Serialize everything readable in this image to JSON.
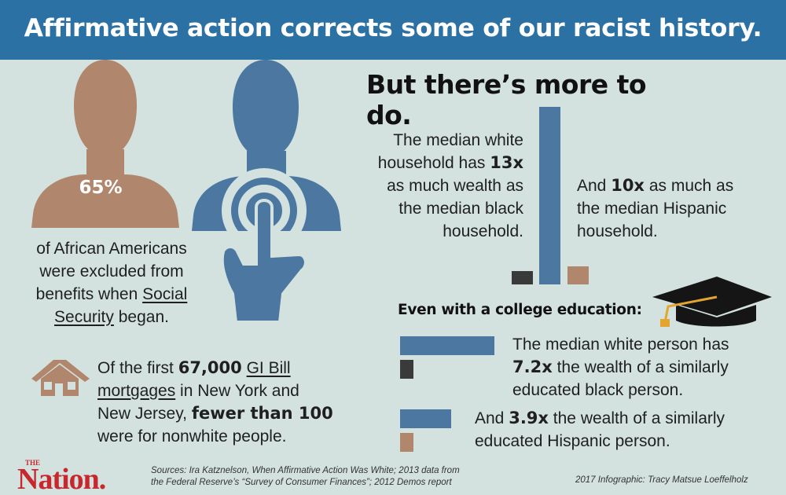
{
  "header": {
    "title": "Affirmative action corrects some of our racist history."
  },
  "colors": {
    "banner": "#2b71a3",
    "background": "#d3e2df",
    "white_bar": "#4b77a1",
    "black_bar": "#3a3a3a",
    "hispanic_bar": "#b0876d",
    "figure_tan": "#b0876d",
    "figure_blue": "#4b77a1",
    "logo_red": "#c8272d"
  },
  "left_panel": {
    "percent_label": "65%",
    "ss_line1": "of African Americans",
    "ss_line2": "were excluded from",
    "ss_line3_prefix": "benefits when ",
    "ss_line3_link": "Social",
    "ss_line4_link": "Security",
    "ss_line4_suffix": " began.",
    "icons": [
      "person-silhouette-icon",
      "touch-hand-icon",
      "house-icon"
    ]
  },
  "gi_bill": {
    "prefix": "Of the first ",
    "count": "67,000",
    "space": " ",
    "link1": "GI Bill",
    "link2": "mortgages",
    "mid": " in New York and",
    "line3": "New Jersey, ",
    "fewer": "fewer than 100",
    "line4": "were for nonwhite people."
  },
  "right_panel": {
    "title": "But there’s more to do.",
    "white_line1": "The median white",
    "white_line2_prefix": "household has ",
    "white_multiple": "13x",
    "white_line3": "as much wealth as",
    "white_line4": "the median black",
    "white_line5": "household.",
    "hisp_prefix": "And ",
    "hisp_multiple": "10x",
    "hisp_line1_suffix": " as much as",
    "hisp_line2": "the median Hispanic",
    "hisp_line3": "household."
  },
  "education": {
    "heading": "Even with a college education:",
    "icon": "graduation-cap-icon",
    "white_line1": "The median white person has",
    "white_multiple": "7.2x",
    "white_line2_suffix": " the wealth of a similarly",
    "white_line3": "educated black person.",
    "hisp_prefix": "And ",
    "hisp_multiple": "3.9x",
    "hisp_line1_suffix": " the wealth of a similarly",
    "hisp_line2": "educated Hispanic person."
  },
  "chart_data": [
    {
      "type": "bar",
      "categories": [
        "black",
        "white",
        "Hispanic"
      ],
      "values": [
        1,
        13,
        1.3
      ],
      "title": "",
      "xlabel": "",
      "ylabel": ""
    },
    {
      "type": "bar",
      "orientation": "horizontal",
      "categories": [
        "white",
        "black"
      ],
      "values": [
        7.2,
        1
      ],
      "title": "",
      "xlabel": "",
      "ylabel": ""
    },
    {
      "type": "bar",
      "orientation": "horizontal",
      "categories": [
        "white",
        "Hispanic"
      ],
      "values": [
        3.9,
        1
      ],
      "title": "",
      "xlabel": "",
      "ylabel": ""
    }
  ],
  "footer": {
    "logo_the": "THE",
    "logo_name": "Nation.",
    "sources_line1": "Sources: Ira Katznelson, When Affirmative Action Was White; 2013 data from",
    "sources_line2": "the Federal Reserve’s “Survey of Consumer Finances”; 2012 Demos report",
    "credit": "2017 Infographic: Tracy Matsue Loeffelholz"
  }
}
